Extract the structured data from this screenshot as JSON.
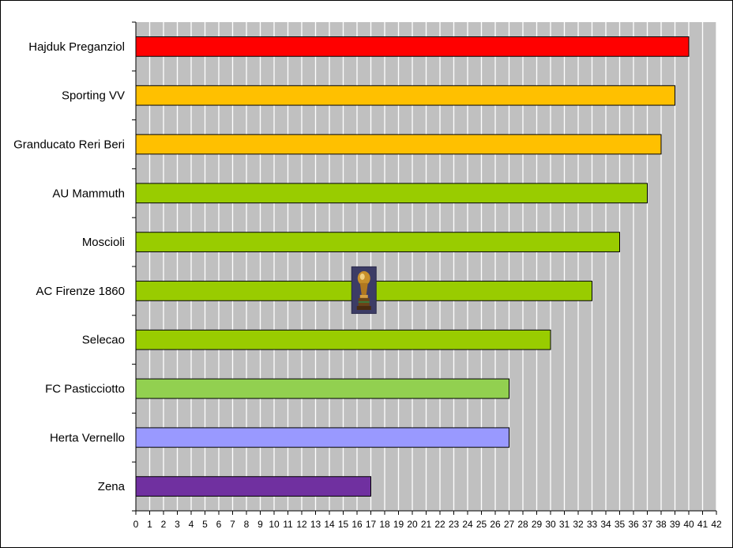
{
  "chart_data": {
    "type": "bar",
    "orientation": "horizontal",
    "title": "",
    "xlabel": "",
    "ylabel": "",
    "categories": [
      "Hajduk Preganziol",
      "Sporting VV",
      "Granducato Reri Beri",
      "AU Mammuth",
      "Moscioli",
      "AC Firenze 1860",
      "Selecao",
      "FC Pasticciotto",
      "Herta Vernello",
      "Zena"
    ],
    "values": [
      40,
      39,
      38,
      37,
      35,
      33,
      30,
      27,
      27,
      17
    ],
    "bar_colors": [
      "#ff0000",
      "#ffc000",
      "#ffc000",
      "#99cc00",
      "#99cc00",
      "#99cc00",
      "#99cc00",
      "#92d050",
      "#9999ff",
      "#7030a0"
    ],
    "xlim": [
      0,
      42
    ],
    "x_tick_step": 1,
    "grid": true,
    "plot_background": "#c0c0c0",
    "gridline_color": "#ffffff",
    "legend": "none",
    "trophy_icon": {
      "name": "trophy-icon",
      "category": "AC Firenze 1860",
      "at_value": 16.5
    }
  }
}
